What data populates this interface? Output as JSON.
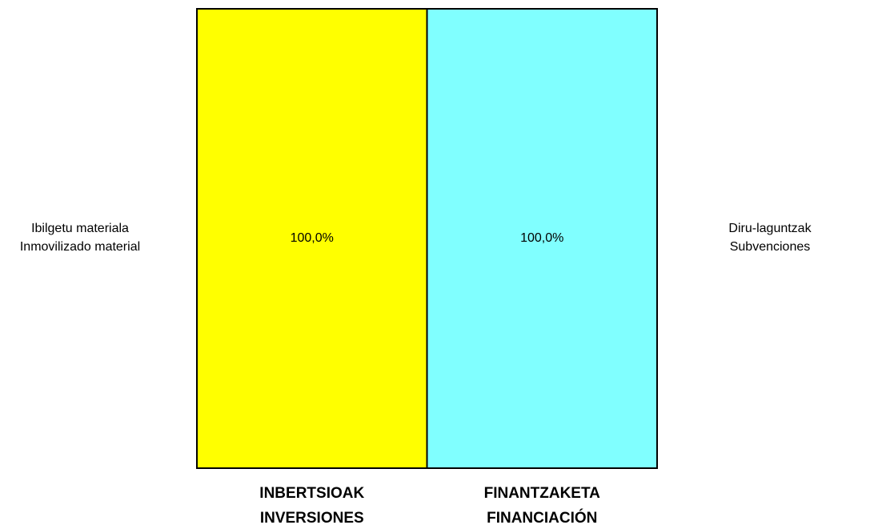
{
  "chart_data": {
    "type": "bar",
    "stacked": true,
    "categories": [
      [
        "INBERTSIOAK",
        "INVERSIONES"
      ],
      [
        "FINANTZAKETA",
        "FINANCIACIÓN"
      ]
    ],
    "series": [
      {
        "name": [
          "Ibilgetu materiala",
          "Inmovilizado material"
        ],
        "color": "#ffff00",
        "values": [
          100,
          null
        ],
        "value_labels": [
          "100,0%",
          null
        ]
      },
      {
        "name": [
          "Diru-laguntzak",
          "Subvenciones"
        ],
        "color": "#80ffff",
        "values": [
          null,
          100
        ],
        "value_labels": [
          null,
          "100,0%"
        ]
      }
    ],
    "ylim": [
      0,
      100
    ]
  }
}
